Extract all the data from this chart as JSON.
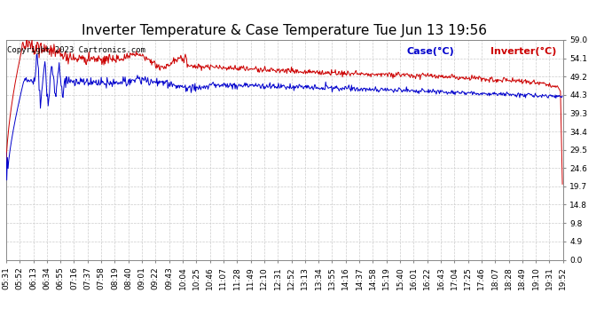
{
  "title": "Inverter Temperature & Case Temperature Tue Jun 13 19:56",
  "copyright": "Copyright 2023 Cartronics.com",
  "legend_case": "Case(°C)",
  "legend_inverter": "Inverter(°C)",
  "case_color": "#0000cc",
  "inverter_color": "#cc0000",
  "background_color": "#ffffff",
  "grid_color": "#cccccc",
  "ylim": [
    0.0,
    59.0
  ],
  "yticks": [
    0.0,
    4.9,
    9.8,
    14.8,
    19.7,
    24.6,
    29.5,
    34.4,
    39.3,
    44.3,
    49.2,
    54.1,
    59.0
  ],
  "title_fontsize": 11,
  "copyright_fontsize": 6.5,
  "tick_fontsize": 6.5,
  "legend_fontsize": 8
}
